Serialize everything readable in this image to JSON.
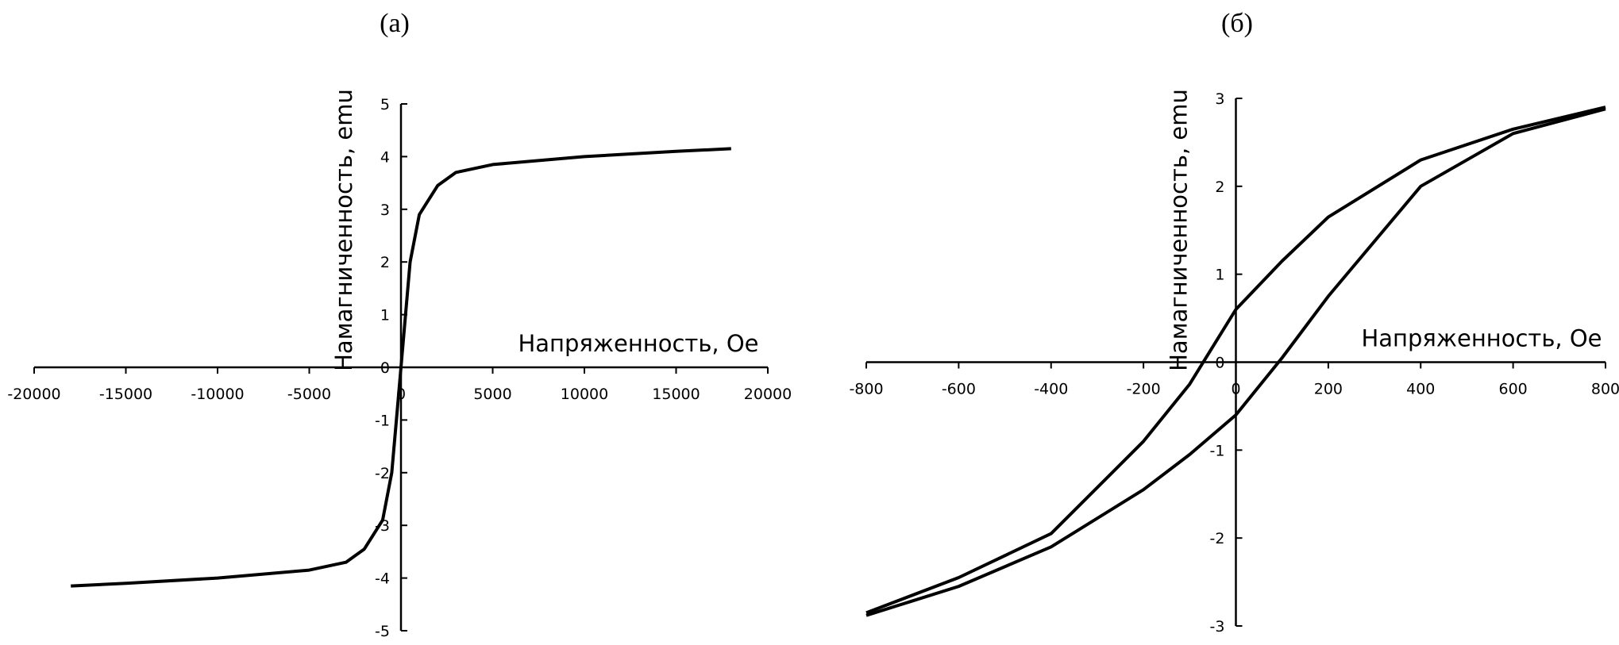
{
  "chart_data": [
    {
      "type": "line",
      "title": "(a)",
      "xlabel": "Напряженность, Ое",
      "ylabel": "Намагниченность, emu",
      "xlim": [
        -20000,
        20000
      ],
      "xticks": [
        -20000,
        -15000,
        -10000,
        -5000,
        0,
        5000,
        10000,
        15000,
        20000
      ],
      "ylim": [
        -5,
        5
      ],
      "yticks": [
        -5,
        -4,
        -3,
        -2,
        -1,
        0,
        1,
        2,
        3,
        4,
        5
      ],
      "series": [
        {
          "color": "#000000",
          "x": [
            -18000,
            -15000,
            -10000,
            -5000,
            -3000,
            -2000,
            -1000,
            -500,
            -200,
            0,
            200,
            500,
            1000,
            2000,
            3000,
            5000,
            10000,
            15000,
            18000
          ],
          "values": [
            -4.15,
            -4.1,
            -4.0,
            -3.85,
            -3.7,
            -3.45,
            -2.9,
            -2,
            -0.8,
            0,
            0.8,
            2,
            2.9,
            3.45,
            3.7,
            3.85,
            4.0,
            4.1,
            4.15
          ]
        }
      ]
    },
    {
      "type": "line",
      "title": "(б)",
      "xlabel": "Напряженность, Ое",
      "ylabel": "Намагниченность, emu",
      "xlim": [
        -800,
        800
      ],
      "xticks": [
        -800,
        -600,
        -400,
        -200,
        0,
        200,
        400,
        600,
        800
      ],
      "ylim": [
        -3,
        3
      ],
      "yticks": [
        -3,
        -2,
        -1,
        0,
        1,
        2,
        3
      ],
      "series": [
        {
          "color": "#000000",
          "x": [
            -800,
            -600,
            -400,
            -200,
            -100,
            0,
            100,
            200,
            400,
            600,
            800
          ],
          "values": [
            -2.85,
            -2.45,
            -1.95,
            -0.9,
            -0.25,
            0.6,
            1.15,
            1.65,
            2.3,
            2.65,
            2.9
          ]
        },
        {
          "color": "#000000",
          "x": [
            -800,
            -600,
            -400,
            -200,
            -100,
            0,
            100,
            200,
            400,
            600,
            800
          ],
          "values": [
            -2.88,
            -2.55,
            -2.1,
            -1.45,
            -1.05,
            -0.6,
            0.05,
            0.75,
            2.0,
            2.6,
            2.88
          ]
        }
      ]
    }
  ]
}
